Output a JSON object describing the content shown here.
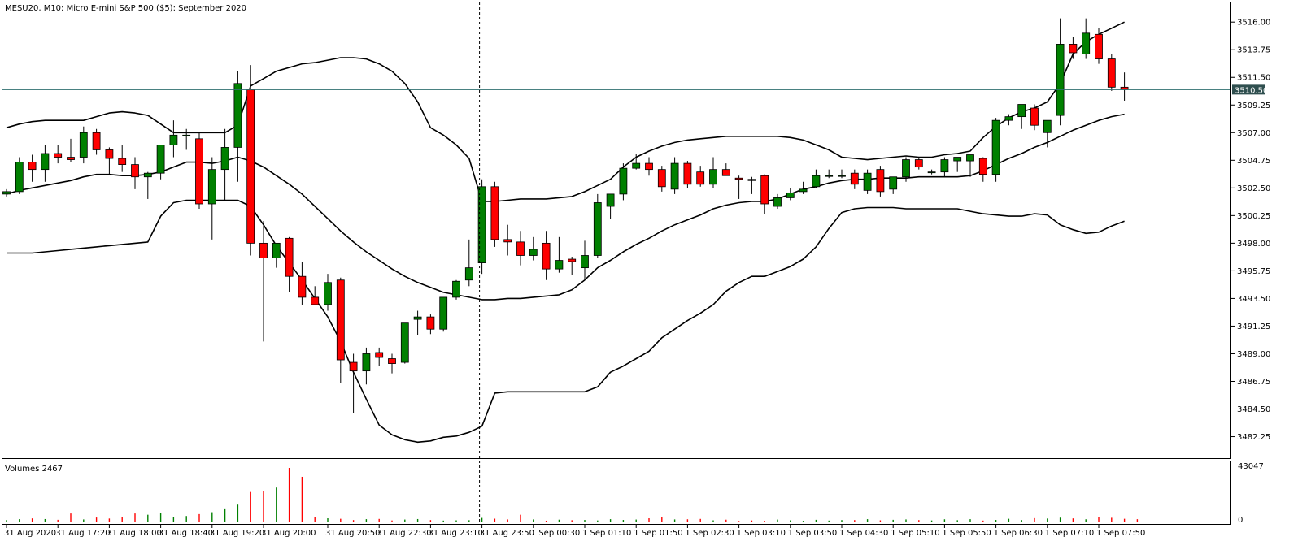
{
  "chart_data": {
    "type": "candlestick",
    "title": "MESU20, M10:  Micro E-mini S&P 500 ($5): September 2020",
    "last_price_label": "3510.50",
    "last_price": 3510.5,
    "ylim": [
      3480.5,
      3517.6
    ],
    "price_ticks": [
      "3516.00",
      "3513.75",
      "3511.50",
      "3509.25",
      "3507.00",
      "3504.75",
      "3502.50",
      "3500.25",
      "3498.00",
      "3495.75",
      "3493.50",
      "3491.25",
      "3489.00",
      "3486.75",
      "3484.50",
      "3482.25"
    ],
    "x_ticks": [
      {
        "label": "31 Aug 2020",
        "index": 0
      },
      {
        "label": "31 Aug 17:20",
        "index": 4
      },
      {
        "label": "31 Aug 18:00",
        "index": 8
      },
      {
        "label": "31 Aug 18:40",
        "index": 12
      },
      {
        "label": "31 Aug 19:20",
        "index": 16
      },
      {
        "label": "31 Aug 20:00",
        "index": 20
      },
      {
        "label": "31 Aug 20:50",
        "index": 25
      },
      {
        "label": "31 Aug 22:30",
        "index": 29
      },
      {
        "label": "31 Aug 23:10",
        "index": 33
      },
      {
        "label": "31 Aug 23:50",
        "index": 37
      },
      {
        "label": "1 Sep 00:30",
        "index": 41
      },
      {
        "label": "1 Sep 01:10",
        "index": 45
      },
      {
        "label": "1 Sep 01:50",
        "index": 49
      },
      {
        "label": "1 Sep 02:30",
        "index": 53
      },
      {
        "label": "1 Sep 03:10",
        "index": 57
      },
      {
        "label": "1 Sep 03:50",
        "index": 61
      },
      {
        "label": "1 Sep 04:30",
        "index": 65
      },
      {
        "label": "1 Sep 05:10",
        "index": 69
      },
      {
        "label": "1 Sep 05:50",
        "index": 73
      },
      {
        "label": "1 Sep 06:30",
        "index": 77
      },
      {
        "label": "1 Sep 07:10",
        "index": 81
      },
      {
        "label": "1 Sep 07:50",
        "index": 85
      }
    ],
    "session_break_index": 37,
    "up_color": "#008000",
    "down_color": "#ff0000",
    "ohlc": [
      [
        3502.0,
        3502.4,
        3501.8,
        3502.2
      ],
      [
        3502.2,
        3505.0,
        3502.0,
        3504.6
      ],
      [
        3504.6,
        3505.2,
        3503.0,
        3504.0
      ],
      [
        3504.0,
        3506.0,
        3503.0,
        3505.3
      ],
      [
        3505.3,
        3506.0,
        3504.5,
        3505.0
      ],
      [
        3505.0,
        3506.5,
        3504.6,
        3504.8
      ],
      [
        3505.0,
        3507.5,
        3504.5,
        3507.0
      ],
      [
        3507.0,
        3507.3,
        3505.2,
        3505.6
      ],
      [
        3505.6,
        3505.8,
        3503.6,
        3504.9
      ],
      [
        3504.9,
        3506.0,
        3503.8,
        3504.4
      ],
      [
        3504.4,
        3505.0,
        3502.4,
        3503.4
      ],
      [
        3503.4,
        3503.8,
        3501.6,
        3503.7
      ],
      [
        3503.7,
        3506.0,
        3503.2,
        3506.0
      ],
      [
        3506.0,
        3508.0,
        3505.0,
        3506.8
      ],
      [
        3506.8,
        3507.3,
        3505.6,
        3506.8
      ],
      [
        3506.5,
        3507.0,
        3500.8,
        3501.2
      ],
      [
        3501.2,
        3505.0,
        3498.3,
        3504.0
      ],
      [
        3504.0,
        3507.3,
        3501.5,
        3505.8
      ],
      [
        3505.8,
        3512.0,
        3503.0,
        3511.0
      ],
      [
        3510.5,
        3512.5,
        3497.0,
        3498.0
      ],
      [
        3498.0,
        3499.8,
        3490.0,
        3496.8
      ],
      [
        3496.8,
        3498.0,
        3496.0,
        3498.0
      ],
      [
        3498.4,
        3498.5,
        3494.0,
        3495.3
      ],
      [
        3495.3,
        3496.5,
        3493.0,
        3493.6
      ],
      [
        3493.6,
        3494.5,
        3493.0,
        3493.0
      ],
      [
        3493.0,
        3495.5,
        3492.5,
        3494.8
      ],
      [
        3495.0,
        3495.2,
        3486.6,
        3488.5
      ],
      [
        3488.3,
        3489.0,
        3484.2,
        3487.6
      ],
      [
        3487.6,
        3489.5,
        3486.5,
        3489.0
      ],
      [
        3489.1,
        3489.5,
        3488.0,
        3488.7
      ],
      [
        3488.6,
        3489.0,
        3487.4,
        3488.2
      ],
      [
        3488.3,
        3491.5,
        3488.2,
        3491.5
      ],
      [
        3491.8,
        3492.5,
        3490.5,
        3492.0
      ],
      [
        3492.0,
        3492.2,
        3490.6,
        3491.0
      ],
      [
        3491.0,
        3493.5,
        3490.8,
        3493.6
      ],
      [
        3493.6,
        3495.0,
        3493.4,
        3494.9
      ],
      [
        3495.0,
        3498.3,
        3494.5,
        3496.0
      ],
      [
        3496.4,
        3503.2,
        3495.5,
        3502.6
      ],
      [
        3502.6,
        3503.0,
        3497.7,
        3498.3
      ],
      [
        3498.3,
        3499.5,
        3497.0,
        3498.1
      ],
      [
        3498.1,
        3499.0,
        3496.2,
        3497.0
      ],
      [
        3497.0,
        3498.5,
        3496.6,
        3497.5
      ],
      [
        3498.0,
        3499.0,
        3495.0,
        3495.9
      ],
      [
        3495.9,
        3498.5,
        3495.6,
        3496.6
      ],
      [
        3496.7,
        3496.9,
        3495.4,
        3496.5
      ],
      [
        3496.0,
        3498.2,
        3495.0,
        3497.0
      ],
      [
        3497.0,
        3502.0,
        3496.8,
        3501.3
      ],
      [
        3501.0,
        3502.0,
        3500.0,
        3502.0
      ],
      [
        3502.0,
        3504.5,
        3501.5,
        3504.1
      ],
      [
        3504.1,
        3505.3,
        3504.0,
        3504.5
      ],
      [
        3504.5,
        3505.0,
        3503.5,
        3504.0
      ],
      [
        3504.0,
        3504.3,
        3502.2,
        3502.6
      ],
      [
        3502.4,
        3505.0,
        3502.0,
        3504.5
      ],
      [
        3504.5,
        3504.7,
        3502.5,
        3502.8
      ],
      [
        3503.8,
        3504.3,
        3502.6,
        3502.8
      ],
      [
        3502.8,
        3505.0,
        3502.5,
        3504.0
      ],
      [
        3504.0,
        3504.5,
        3503.5,
        3503.5
      ],
      [
        3503.3,
        3503.5,
        3501.6,
        3503.2
      ],
      [
        3503.2,
        3503.4,
        3502.0,
        3503.1
      ],
      [
        3503.5,
        3503.6,
        3500.4,
        3501.2
      ],
      [
        3501.0,
        3502.0,
        3500.8,
        3501.7
      ],
      [
        3501.7,
        3502.5,
        3501.5,
        3502.1
      ],
      [
        3502.2,
        3503.0,
        3502.0,
        3502.4
      ],
      [
        3502.6,
        3504.0,
        3502.5,
        3503.5
      ],
      [
        3503.5,
        3504.0,
        3503.3,
        3503.5
      ],
      [
        3503.5,
        3504.0,
        3503.3,
        3503.5
      ],
      [
        3503.7,
        3504.0,
        3502.4,
        3502.8
      ],
      [
        3502.3,
        3504.0,
        3502.0,
        3503.7
      ],
      [
        3504.0,
        3504.3,
        3501.8,
        3502.2
      ],
      [
        3502.4,
        3503.4,
        3502.0,
        3503.4
      ],
      [
        3503.4,
        3505.0,
        3503.0,
        3504.8
      ],
      [
        3504.8,
        3505.0,
        3504.0,
        3504.2
      ],
      [
        3503.8,
        3504.0,
        3503.6,
        3503.8
      ],
      [
        3503.8,
        3505.0,
        3503.4,
        3504.8
      ],
      [
        3504.7,
        3505.0,
        3503.8,
        3505.0
      ],
      [
        3504.7,
        3505.2,
        3503.4,
        3505.2
      ],
      [
        3504.9,
        3505.0,
        3503.0,
        3503.6
      ],
      [
        3503.6,
        3508.2,
        3503.0,
        3508.0
      ],
      [
        3508.0,
        3508.5,
        3507.6,
        3508.3
      ],
      [
        3508.3,
        3509.3,
        3507.3,
        3509.3
      ],
      [
        3509.0,
        3509.3,
        3507.2,
        3507.6
      ],
      [
        3507.0,
        3508.0,
        3505.8,
        3508.0
      ],
      [
        3508.4,
        3516.3,
        3507.6,
        3514.2
      ],
      [
        3514.2,
        3514.8,
        3513.0,
        3513.5
      ],
      [
        3513.4,
        3516.3,
        3513.0,
        3515.1
      ],
      [
        3515.0,
        3515.5,
        3512.6,
        3513.0
      ],
      [
        3513.0,
        3513.4,
        3510.4,
        3510.7
      ],
      [
        3510.7,
        3511.9,
        3509.6,
        3510.5
      ]
    ],
    "bollinger": {
      "upper": [
        3507.4,
        3507.7,
        3507.9,
        3508.0,
        3508.0,
        3508.0,
        3508.0,
        3508.3,
        3508.6,
        3508.7,
        3508.6,
        3508.4,
        3507.7,
        3507.0,
        3507.0,
        3507.0,
        3507.0,
        3507.0,
        3507.6,
        3510.8,
        3511.4,
        3512.0,
        3512.3,
        3512.6,
        3512.7,
        3512.9,
        3513.1,
        3513.1,
        3513.0,
        3512.6,
        3512.0,
        3511.0,
        3509.5,
        3507.4,
        3506.8,
        3506.0,
        3504.9,
        3501.4,
        3501.4,
        3501.5,
        3501.6,
        3501.6,
        3501.6,
        3501.7,
        3501.8,
        3502.2,
        3502.7,
        3503.2,
        3504.2,
        3505.0,
        3505.5,
        3505.9,
        3506.2,
        3506.4,
        3506.5,
        3506.6,
        3506.7,
        3506.7,
        3506.7,
        3506.7,
        3506.7,
        3506.6,
        3506.4,
        3506.0,
        3505.6,
        3505.0,
        3504.9,
        3504.8,
        3504.9,
        3505.0,
        3505.1,
        3505.0,
        3505.0,
        3505.2,
        3505.3,
        3505.5,
        3506.6,
        3507.5,
        3508.2,
        3508.7,
        3509.0,
        3509.5,
        3511.0,
        3513.4,
        3514.4,
        3515.0,
        3515.5,
        3516.0
      ],
      "middle": [
        3502.0,
        3502.3,
        3502.5,
        3502.7,
        3502.9,
        3503.1,
        3503.4,
        3503.6,
        3503.6,
        3503.5,
        3503.5,
        3503.6,
        3503.8,
        3504.2,
        3504.6,
        3504.6,
        3504.5,
        3504.7,
        3505.0,
        3504.7,
        3504.2,
        3503.5,
        3502.8,
        3502.0,
        3501.0,
        3500.0,
        3499.0,
        3498.1,
        3497.3,
        3496.6,
        3495.9,
        3495.3,
        3494.8,
        3494.4,
        3494.0,
        3493.8,
        3493.6,
        3493.4,
        3493.4,
        3493.5,
        3493.5,
        3493.6,
        3493.7,
        3493.8,
        3494.2,
        3495.0,
        3496.0,
        3496.6,
        3497.3,
        3497.9,
        3498.4,
        3499.0,
        3499.5,
        3499.9,
        3500.3,
        3500.8,
        3501.1,
        3501.3,
        3501.4,
        3501.4,
        3501.6,
        3502.0,
        3502.4,
        3502.6,
        3502.9,
        3503.1,
        3503.2,
        3503.2,
        3503.3,
        3503.3,
        3503.3,
        3503.4,
        3503.4,
        3503.4,
        3503.4,
        3503.5,
        3503.9,
        3504.4,
        3504.9,
        3505.3,
        3505.8,
        3506.2,
        3506.7,
        3507.2,
        3507.6,
        3508.0,
        3508.3,
        3508.5
      ],
      "lower": [
        3497.2,
        3497.2,
        3497.2,
        3497.3,
        3497.4,
        3497.5,
        3497.6,
        3497.7,
        3497.8,
        3497.9,
        3498.0,
        3498.1,
        3500.2,
        3501.3,
        3501.5,
        3501.5,
        3501.5,
        3501.5,
        3501.5,
        3501.0,
        3499.5,
        3497.8,
        3496.4,
        3495.0,
        3493.5,
        3492.0,
        3490.0,
        3487.5,
        3485.3,
        3483.2,
        3482.4,
        3482.0,
        3481.8,
        3481.9,
        3482.2,
        3482.3,
        3482.6,
        3483.1,
        3485.8,
        3485.9,
        3485.9,
        3485.9,
        3485.9,
        3485.9,
        3485.9,
        3485.9,
        3486.3,
        3487.5,
        3488.0,
        3488.6,
        3489.2,
        3490.3,
        3491.0,
        3491.7,
        3492.3,
        3493.0,
        3494.1,
        3494.8,
        3495.3,
        3495.3,
        3495.7,
        3496.1,
        3496.7,
        3497.7,
        3499.2,
        3500.5,
        3500.8,
        3500.9,
        3500.9,
        3500.9,
        3500.8,
        3500.8,
        3500.8,
        3500.8,
        3500.8,
        3500.6,
        3500.4,
        3500.3,
        3500.2,
        3500.2,
        3500.4,
        3500.3,
        3499.5,
        3499.1,
        3498.8,
        3498.9,
        3499.4,
        3499.8
      ]
    },
    "volume": {
      "label": "Volumes 2467",
      "max_label": "43047",
      "zero_label": "0",
      "max": 43047,
      "values": [
        1800,
        2500,
        3100,
        2600,
        2000,
        7000,
        2300,
        3800,
        3000,
        4500,
        7000,
        6000,
        7500,
        4200,
        5000,
        6500,
        8000,
        11000,
        14000,
        24000,
        25000,
        27500,
        43047,
        36000,
        4000,
        3200,
        2800,
        1800,
        2500,
        2700,
        1500,
        2200,
        2600,
        1800,
        1400,
        1600,
        1700,
        3500,
        2900,
        2300,
        6000,
        2300,
        1300,
        2100,
        1700,
        1900,
        1500,
        2500,
        1900,
        2200,
        3200,
        4000,
        2300,
        2400,
        2700,
        1600,
        2100,
        1100,
        1500,
        1200,
        2200,
        1600,
        1200,
        2000,
        1400,
        1800,
        1800,
        2500,
        1600,
        2000,
        2300,
        1800,
        1500,
        2400,
        1700,
        2500,
        1400,
        1900,
        2800,
        1800,
        3300,
        3000,
        3700,
        3100,
        2400,
        4200,
        3600,
        2800,
        2467
      ]
    }
  }
}
